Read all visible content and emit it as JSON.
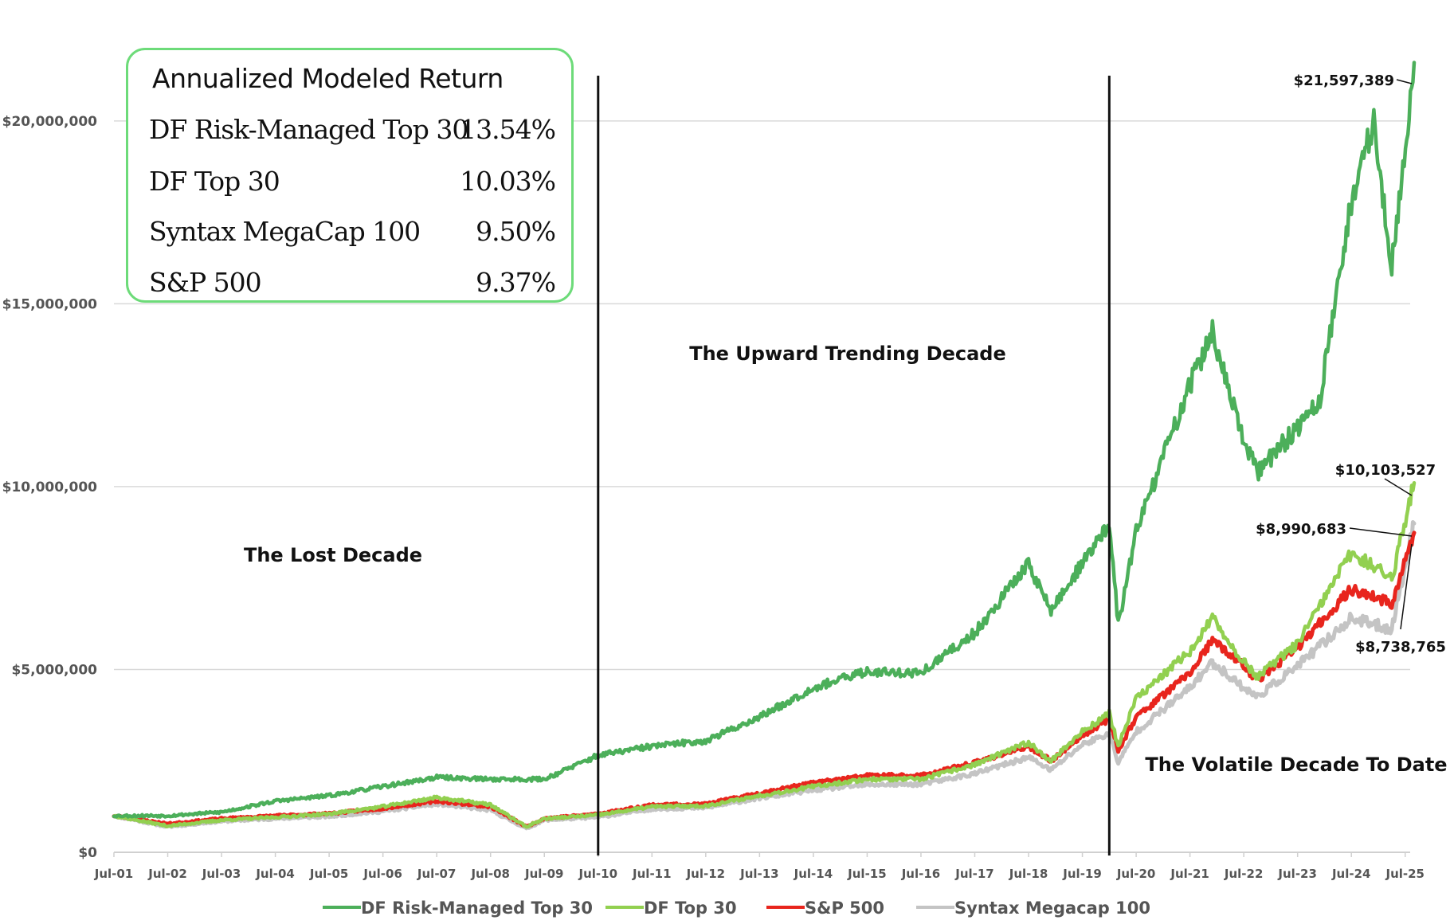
{
  "returns_box": {
    "title": "Annualized Modeled Return",
    "rows": [
      {
        "name": "DF Risk-Managed Top 30",
        "value": "13.54%"
      },
      {
        "name": "DF Top 30",
        "value": "10.03%"
      },
      {
        "name": "Syntax MegaCap 100",
        "value": "9.50%"
      },
      {
        "name": "S&P 500",
        "value": "9.37%"
      }
    ]
  },
  "chart_data": {
    "type": "line",
    "ylim": [
      0,
      22000000
    ],
    "xlim": [
      "2001-07",
      "2025-09"
    ],
    "y_ticks": [
      {
        "value": 0,
        "label": "$0"
      },
      {
        "value": 5000000,
        "label": "$5,000,000"
      },
      {
        "value": 10000000,
        "label": "$10,000,000"
      },
      {
        "value": 15000000,
        "label": "$15,000,000"
      },
      {
        "value": 20000000,
        "label": "$20,000,000"
      }
    ],
    "x_ticks": [
      "Jul-01",
      "Jul-02",
      "Jul-03",
      "Jul-04",
      "Jul-05",
      "Jul-06",
      "Jul-07",
      "Jul-08",
      "Jul-09",
      "Jul-10",
      "Jul-11",
      "Jul-12",
      "Jul-13",
      "Jul-14",
      "Jul-15",
      "Jul-16",
      "Jul-17",
      "Jul-18",
      "Jul-19",
      "Jul-20",
      "Jul-21",
      "Jul-22",
      "Jul-23",
      "Jul-24",
      "Jul-25"
    ],
    "grid": true,
    "legend_position": "bottom",
    "dividers": [
      "2010-07",
      "2020-01"
    ],
    "era_labels": [
      "The Lost Decade",
      "The Upward Trending Decade",
      "The Volatile Decade To Date"
    ],
    "end_labels": {
      "rm30": "$21,597,389",
      "top30": "$10,103,527",
      "syntax": "$8,990,683",
      "sp500": "$8,738,765"
    },
    "series": [
      {
        "key": "syntax",
        "name": "Syntax Megacap 100",
        "color": "#c4c4c4",
        "points": [
          [
            "2001-07",
            1000000
          ],
          [
            "2002-07",
            700000
          ],
          [
            "2003-07",
            850000
          ],
          [
            "2004-07",
            920000
          ],
          [
            "2005-07",
            980000
          ],
          [
            "2006-07",
            1120000
          ],
          [
            "2007-07",
            1320000
          ],
          [
            "2008-07",
            1150000
          ],
          [
            "2009-03",
            650000
          ],
          [
            "2009-07",
            880000
          ],
          [
            "2010-07",
            960000
          ],
          [
            "2011-07",
            1180000
          ],
          [
            "2012-07",
            1220000
          ],
          [
            "2013-07",
            1480000
          ],
          [
            "2014-07",
            1700000
          ],
          [
            "2015-07",
            1850000
          ],
          [
            "2016-07",
            1860000
          ],
          [
            "2017-07",
            2150000
          ],
          [
            "2018-07",
            2600000
          ],
          [
            "2018-12",
            2250000
          ],
          [
            "2019-07",
            2950000
          ],
          [
            "2020-01",
            3250000
          ],
          [
            "2020-03",
            2450000
          ],
          [
            "2020-07",
            3300000
          ],
          [
            "2021-07",
            4500000
          ],
          [
            "2021-12",
            5200000
          ],
          [
            "2022-07",
            4500000
          ],
          [
            "2022-10",
            4250000
          ],
          [
            "2023-07",
            5100000
          ],
          [
            "2024-07",
            6400000
          ],
          [
            "2025-04",
            6100000
          ],
          [
            "2025-09",
            8990683
          ]
        ]
      },
      {
        "key": "sp500",
        "name": "S&P 500",
        "color": "#e8251d",
        "points": [
          [
            "2001-07",
            1000000
          ],
          [
            "2002-07",
            780000
          ],
          [
            "2003-07",
            920000
          ],
          [
            "2004-07",
            1000000
          ],
          [
            "2005-07",
            1060000
          ],
          [
            "2006-07",
            1200000
          ],
          [
            "2007-07",
            1400000
          ],
          [
            "2008-07",
            1250000
          ],
          [
            "2009-03",
            700000
          ],
          [
            "2009-07",
            930000
          ],
          [
            "2010-07",
            1050000
          ],
          [
            "2011-07",
            1300000
          ],
          [
            "2012-07",
            1320000
          ],
          [
            "2013-07",
            1620000
          ],
          [
            "2014-07",
            1900000
          ],
          [
            "2015-07",
            2100000
          ],
          [
            "2016-07",
            2100000
          ],
          [
            "2017-07",
            2450000
          ],
          [
            "2018-07",
            2900000
          ],
          [
            "2018-12",
            2500000
          ],
          [
            "2019-07",
            3200000
          ],
          [
            "2020-01",
            3650000
          ],
          [
            "2020-03",
            2800000
          ],
          [
            "2020-07",
            3700000
          ],
          [
            "2021-07",
            4900000
          ],
          [
            "2021-12",
            5800000
          ],
          [
            "2022-07",
            5100000
          ],
          [
            "2022-10",
            4700000
          ],
          [
            "2023-07",
            5600000
          ],
          [
            "2024-07",
            7200000
          ],
          [
            "2025-04",
            6800000
          ],
          [
            "2025-09",
            8738765
          ]
        ]
      },
      {
        "key": "top30",
        "name": "DF Top 30",
        "color": "#92d050",
        "points": [
          [
            "2001-07",
            1000000
          ],
          [
            "2002-07",
            720000
          ],
          [
            "2003-07",
            880000
          ],
          [
            "2004-07",
            960000
          ],
          [
            "2005-07",
            1050000
          ],
          [
            "2006-07",
            1250000
          ],
          [
            "2007-07",
            1500000
          ],
          [
            "2008-07",
            1300000
          ],
          [
            "2009-03",
            700000
          ],
          [
            "2009-07",
            920000
          ],
          [
            "2010-07",
            1020000
          ],
          [
            "2011-07",
            1250000
          ],
          [
            "2012-07",
            1270000
          ],
          [
            "2013-07",
            1550000
          ],
          [
            "2014-07",
            1800000
          ],
          [
            "2015-07",
            2000000
          ],
          [
            "2016-07",
            2000000
          ],
          [
            "2017-07",
            2400000
          ],
          [
            "2018-07",
            3000000
          ],
          [
            "2018-12",
            2500000
          ],
          [
            "2019-07",
            3300000
          ],
          [
            "2020-01",
            3800000
          ],
          [
            "2020-03",
            2900000
          ],
          [
            "2020-07",
            4200000
          ],
          [
            "2021-07",
            5500000
          ],
          [
            "2021-12",
            6400000
          ],
          [
            "2022-07",
            5200000
          ],
          [
            "2022-10",
            4800000
          ],
          [
            "2023-07",
            5700000
          ],
          [
            "2024-07",
            8200000
          ],
          [
            "2025-04",
            7500000
          ],
          [
            "2025-09",
            10103527
          ]
        ]
      },
      {
        "key": "rm30",
        "name": "DF Risk-Managed Top 30",
        "color": "#4caf5a",
        "points": [
          [
            "2001-07",
            1000000
          ],
          [
            "2002-07",
            1000000
          ],
          [
            "2003-07",
            1100000
          ],
          [
            "2004-07",
            1400000
          ],
          [
            "2005-07",
            1550000
          ],
          [
            "2006-07",
            1800000
          ],
          [
            "2007-07",
            2050000
          ],
          [
            "2008-07",
            2000000
          ],
          [
            "2009-07",
            2000000
          ],
          [
            "2010-07",
            2650000
          ],
          [
            "2011-07",
            2900000
          ],
          [
            "2012-07",
            3050000
          ],
          [
            "2013-07",
            3700000
          ],
          [
            "2014-07",
            4500000
          ],
          [
            "2015-07",
            4950000
          ],
          [
            "2016-07",
            4900000
          ],
          [
            "2017-07",
            6000000
          ],
          [
            "2018-07",
            7900000
          ],
          [
            "2018-12",
            6600000
          ],
          [
            "2019-07",
            7900000
          ],
          [
            "2020-01",
            9000000
          ],
          [
            "2020-03",
            6200000
          ],
          [
            "2020-07",
            8800000
          ],
          [
            "2021-07",
            12800000
          ],
          [
            "2021-12",
            14200000
          ],
          [
            "2022-07",
            11200000
          ],
          [
            "2022-10",
            10400000
          ],
          [
            "2023-07",
            11600000
          ],
          [
            "2023-12",
            12400000
          ],
          [
            "2024-07",
            17800000
          ],
          [
            "2024-12",
            20000000
          ],
          [
            "2025-04",
            16000000
          ],
          [
            "2025-09",
            21597389
          ]
        ]
      }
    ],
    "legend_order": [
      "rm30",
      "top30",
      "sp500",
      "syntax"
    ]
  }
}
